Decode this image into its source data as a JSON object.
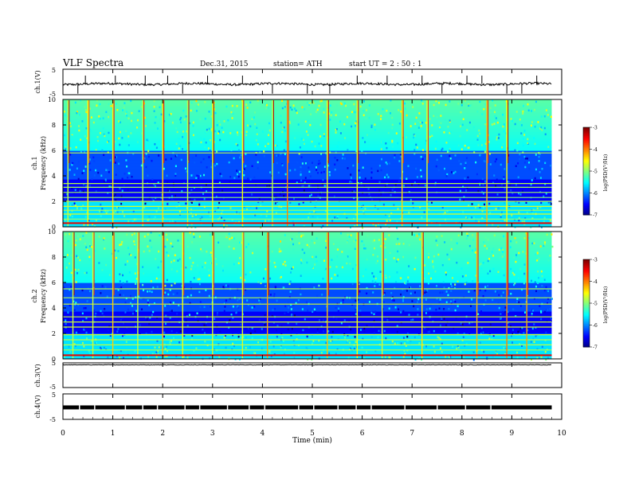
{
  "header": {
    "title": "VLF  Spectra",
    "date": "Dec.31, 2015",
    "station": "station= ATH",
    "start": "start  UT  =   2  : 50 : 1"
  },
  "chart_data": [
    {
      "type": "line",
      "panel": "ch1-waveform",
      "ylabel": "ch.1(V)",
      "ylim": [
        -5,
        5
      ],
      "yticks": [
        "5",
        "-5"
      ],
      "x_range": [
        0,
        9.8
      ],
      "baseline": -0.8,
      "spikes_x": [
        0.3,
        0.45,
        1.05,
        1.65,
        2.1,
        2.4,
        2.9,
        3.6,
        4.2,
        4.9,
        5.35,
        5.9,
        6.5,
        7.2,
        7.6,
        8.1,
        8.4,
        8.9,
        9.2,
        9.5
      ]
    },
    {
      "type": "heatmap",
      "panel": "ch1-spectrogram",
      "ylabel": "ch.1\nFrequency  (kHz)",
      "ylim": [
        0,
        10
      ],
      "yticks": [
        "0",
        "2",
        "4",
        "6",
        "8",
        "10"
      ],
      "x_range": [
        0,
        9.8
      ],
      "colorbar": {
        "label": "log(PSD(V²/Hz)",
        "range": [
          -7,
          -3
        ],
        "ticks": [
          "-3",
          "-4",
          "-5",
          "-6",
          "-7"
        ]
      },
      "bands_khz": [
        0.3,
        0.6,
        1.0,
        1.3,
        1.6,
        2.0,
        2.3,
        2.7,
        3.1,
        3.4,
        5.8
      ],
      "bursts_min": [
        0.1,
        0.5,
        1.0,
        1.6,
        2.0,
        2.5,
        3.0,
        3.6,
        4.2,
        4.5,
        5.3,
        5.9,
        6.8,
        7.3,
        8.5,
        8.9
      ]
    },
    {
      "type": "heatmap",
      "panel": "ch2-spectrogram",
      "ylabel": "ch.2\nFrequency  (kHz)",
      "ylim": [
        0,
        10
      ],
      "yticks": [
        "0",
        "2",
        "4",
        "6",
        "8",
        "10"
      ],
      "x_range": [
        0,
        9.8
      ],
      "colorbar": {
        "label": "log(PSD(V²/Hz)",
        "range": [
          -7,
          -3
        ],
        "ticks": [
          "-3",
          "-4",
          "-5",
          "-6",
          "-7"
        ]
      },
      "bands_khz": [
        0.3,
        0.7,
        1.1,
        1.5,
        1.9,
        2.5,
        2.9,
        3.3,
        4.3,
        4.8,
        5.5
      ],
      "bursts_min": [
        0.2,
        0.6,
        1.0,
        1.5,
        2.0,
        2.4,
        3.0,
        3.6,
        4.1,
        5.3,
        5.9,
        6.4,
        7.2,
        8.3,
        8.9,
        9.3
      ]
    },
    {
      "type": "line",
      "panel": "ch3-waveform",
      "ylabel": "ch.3(V)",
      "ylim": [
        -5,
        5
      ],
      "yticks": [
        "5",
        "-5"
      ],
      "x_range": [
        0,
        9.8
      ],
      "baseline": 4.2
    },
    {
      "type": "line",
      "panel": "ch4-waveform",
      "ylabel": "ch.4(V)",
      "ylim": [
        -5,
        5
      ],
      "yticks": [
        "5",
        "-5"
      ],
      "x_range": [
        0,
        9.8
      ],
      "baseline": -0.3
    }
  ],
  "xaxis": {
    "label": "Time  (min)",
    "ticks": [
      "0",
      "1",
      "2",
      "3",
      "4",
      "5",
      "6",
      "7",
      "8",
      "9",
      "10"
    ],
    "xlim": [
      0,
      10
    ]
  }
}
